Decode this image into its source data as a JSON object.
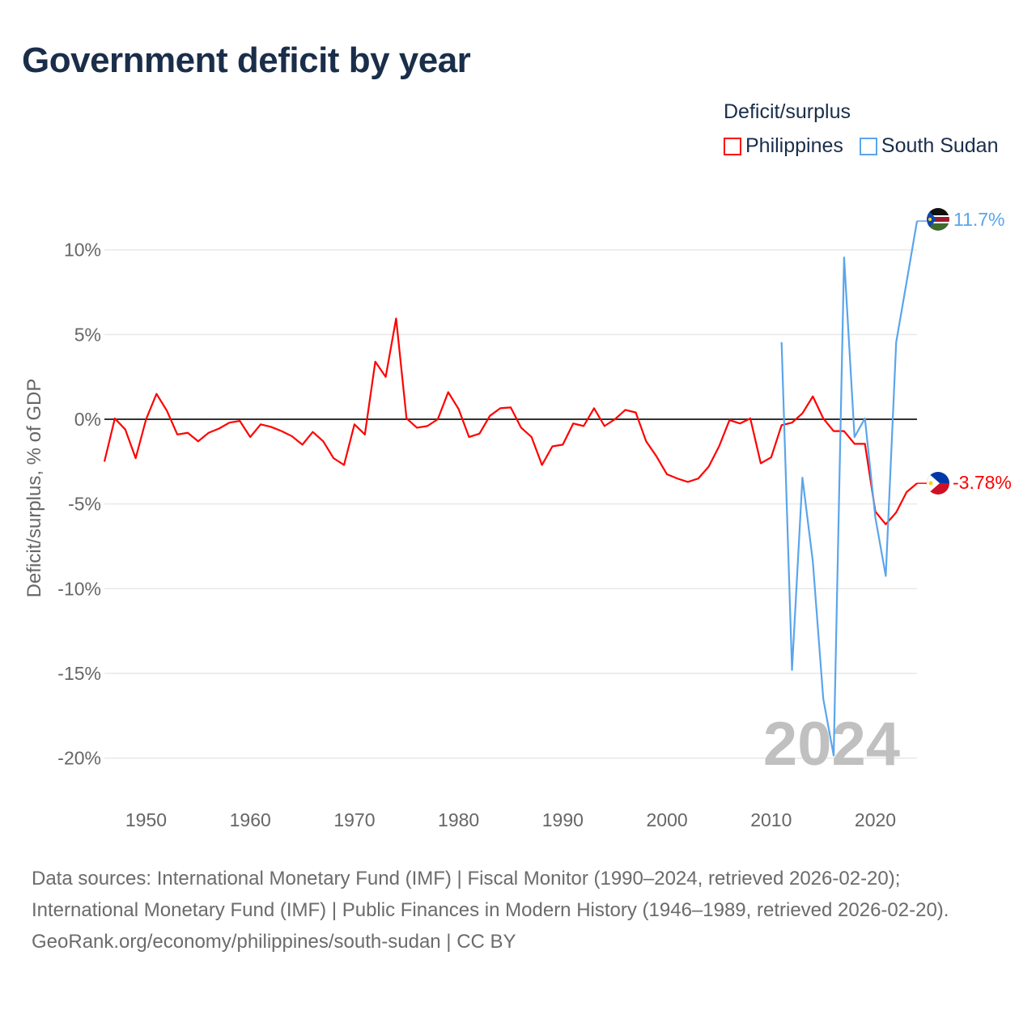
{
  "chart_data": {
    "type": "line",
    "title": "Government deficit by year",
    "xlabel": "",
    "ylabel": "Deficit/surplus, % of GDP",
    "xlim": [
      1946,
      2024
    ],
    "ylim": [
      -20,
      12
    ],
    "yticks": [
      10,
      5,
      0,
      -5,
      -10,
      -15,
      -20
    ],
    "ytick_labels": [
      "10%",
      "5%",
      "0%",
      "-5%",
      "-10%",
      "-15%",
      "-20%"
    ],
    "xticks": [
      1950,
      1960,
      1970,
      1980,
      1990,
      2000,
      2010,
      2020
    ],
    "xtick_labels": [
      "1950",
      "1960",
      "1970",
      "1980",
      "1990",
      "2000",
      "2010",
      "2020"
    ],
    "grid": true,
    "legend_title": "Deficit/surplus",
    "legend_placement": "top-right",
    "year_watermark": "2024",
    "series": [
      {
        "name": "Philippines",
        "color": "#ff0000",
        "end_label": "-3.78%",
        "x": [
          1946,
          1947,
          1948,
          1949,
          1950,
          1951,
          1952,
          1953,
          1954,
          1955,
          1956,
          1957,
          1958,
          1959,
          1960,
          1961,
          1962,
          1963,
          1964,
          1965,
          1966,
          1967,
          1968,
          1969,
          1970,
          1971,
          1972,
          1973,
          1974,
          1975,
          1976,
          1977,
          1978,
          1979,
          1980,
          1981,
          1982,
          1983,
          1984,
          1985,
          1986,
          1987,
          1988,
          1989,
          1990,
          1991,
          1992,
          1993,
          1994,
          1995,
          1996,
          1997,
          1998,
          1999,
          2000,
          2001,
          2002,
          2003,
          2004,
          2005,
          2006,
          2007,
          2008,
          2009,
          2010,
          2011,
          2012,
          2013,
          2014,
          2015,
          2016,
          2017,
          2018,
          2019,
          2020,
          2021,
          2022,
          2023,
          2024
        ],
        "values": [
          -2.5,
          0.05,
          -0.6,
          -2.3,
          0,
          1.5,
          0.5,
          -0.9,
          -0.8,
          -1.3,
          -0.8,
          -0.55,
          -0.2,
          -0.1,
          -1.05,
          -0.3,
          -0.45,
          -0.7,
          -1.0,
          -1.5,
          -0.75,
          -1.3,
          -2.3,
          -2.7,
          -0.3,
          -0.9,
          3.4,
          2.5,
          5.95,
          0.05,
          -0.5,
          -0.4,
          0,
          1.6,
          0.6,
          -1.05,
          -0.85,
          0.2,
          0.65,
          0.7,
          -0.5,
          -1.05,
          -2.7,
          -1.6,
          -1.5,
          -0.25,
          -0.4,
          0.65,
          -0.4,
          0.0,
          0.55,
          0.4,
          -1.3,
          -2.2,
          -3.25,
          -3.5,
          -3.7,
          -3.5,
          -2.8,
          -1.6,
          -0.05,
          -0.25,
          0.05,
          -2.6,
          -2.25,
          -0.35,
          -0.2,
          0.35,
          1.35,
          0.05,
          -0.7,
          -0.7,
          -1.45,
          -1.45,
          -5.45,
          -6.2,
          -5.5,
          -4.3,
          -3.78
        ]
      },
      {
        "name": "South Sudan",
        "color": "#5aa5ec",
        "end_label": "11.7%",
        "x": [
          2011,
          2012,
          2013,
          2014,
          2015,
          2016,
          2017,
          2018,
          2019,
          2020,
          2021,
          2022,
          2023,
          2024
        ],
        "values": [
          4.55,
          -14.8,
          -3.45,
          -8.4,
          -16.5,
          -19.85,
          9.55,
          -1.05,
          0.05,
          -5.8,
          -9.25,
          4.55,
          8.1,
          11.7
        ]
      }
    ]
  },
  "footer": {
    "sources": "Data sources: International Monetary Fund (IMF) | Fiscal Monitor (1990–2024, retrieved 2026-02-20); International Monetary Fund (IMF) | Public Finances in Modern History (1946–1989, retrieved 2026-02-20).",
    "credit": "GeoRank.org/economy/philippines/south-sudan | CC BY"
  }
}
